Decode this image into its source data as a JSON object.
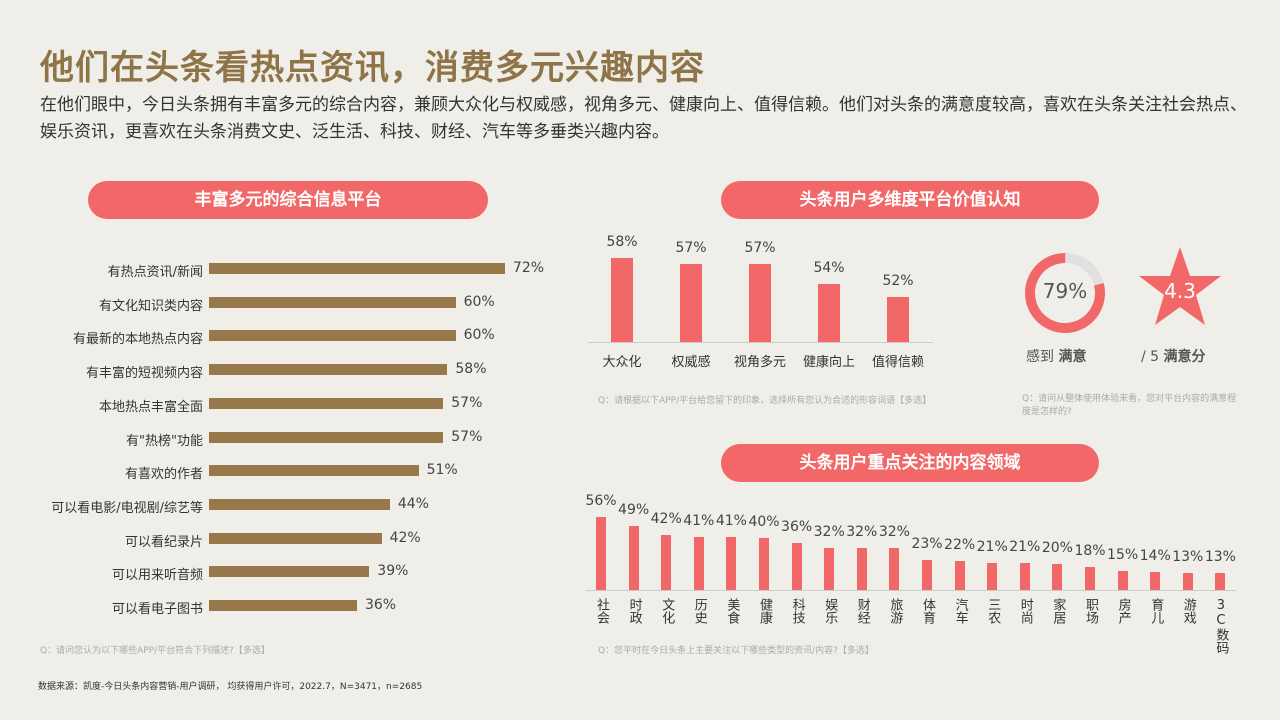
{
  "title": "他们在头条看热点资讯，消费多元兴趣内容",
  "subtitle": "在他们眼中，今日头条拥有丰富多元的综合内容，兼顾大众化与权威感，视角多元、健康向上、值得信赖。他们对头条的满意度较高，喜欢在头条关注社会热点、娱乐资讯，更喜欢在头条消费文史、泛生活、科技、财经、汽车等多垂类兴趣内容。",
  "colors": {
    "bar_brown": "#98784a",
    "accent_red": "#f26868",
    "title": "#8e7447"
  },
  "satisfaction": {
    "percent_text": "79%",
    "percent": 79,
    "percent_label_pre": "感到 ",
    "percent_label_bold": "满意",
    "score": "4.3",
    "score_label_pre": "/ 5 ",
    "score_label_bold": "满意分",
    "note": "Q：请问从整体使用体验来看，您对平台内容的满意程度是怎样的?"
  },
  "source": "数据来源：凯度-今日头条内容营销-用户调研， 均获得用户许可，2022.7，N=3471，n=2685",
  "chart_data": [
    {
      "type": "bar",
      "orientation": "horizontal",
      "title": "丰富多元的综合信息平台",
      "categories": [
        "有热点资讯/新闻",
        "有文化知识类内容",
        "有最新的本地热点内容",
        "有丰富的短视频内容",
        "本地热点丰富全面",
        "有\"热榜\"功能",
        "有喜欢的作者",
        "可以看电影/电视剧/综艺等",
        "可以看纪录片",
        "可以用来听音频",
        "可以看电子图书"
      ],
      "values": [
        72,
        60,
        60,
        58,
        57,
        57,
        51,
        44,
        42,
        39,
        36
      ],
      "labels": [
        "72%",
        "60%",
        "60%",
        "58%",
        "57%",
        "57%",
        "51%",
        "44%",
        "42%",
        "39%",
        "36%"
      ],
      "note": "Q：请问您认为以下哪些APP/平台符合下列描述?【多选】"
    },
    {
      "type": "bar",
      "title": "头条用户多维度平台价值认知",
      "categories": [
        "大众化",
        "权威感",
        "视角多元",
        "健康向上",
        "值得信赖"
      ],
      "values": [
        58,
        57,
        57,
        54,
        52
      ],
      "labels": [
        "58%",
        "57%",
        "57%",
        "54%",
        "52%"
      ],
      "note": "Q：请根据以下APP/平台给您留下的印象，选择所有您认为合适的形容词语【多选】"
    },
    {
      "type": "bar",
      "title": "头条用户重点关注的内容领域",
      "categories": [
        "社会",
        "时政",
        "文化",
        "历史",
        "美食",
        "健康",
        "科技",
        "娱乐",
        "财经",
        "旅游",
        "体育",
        "汽车",
        "三农",
        "时尚",
        "家居",
        "职场",
        "房产",
        "育儿",
        "游戏",
        "3C数码"
      ],
      "values": [
        56,
        49,
        42,
        41,
        41,
        40,
        36,
        32,
        32,
        32,
        23,
        22,
        21,
        21,
        20,
        18,
        15,
        14,
        13,
        13
      ],
      "labels": [
        "56%",
        "49%",
        "42%",
        "41%",
        "41%",
        "40%",
        "36%",
        "32%",
        "32%",
        "32%",
        "23%",
        "22%",
        "21%",
        "21%",
        "20%",
        "18%",
        "15%",
        "14%",
        "13%",
        "13%"
      ],
      "note": "Q：您平时在今日头条上主要关注以下哪些类型的资讯/内容?【多选】"
    }
  ]
}
